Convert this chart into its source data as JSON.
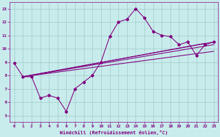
{
  "xlabel": "Windchill (Refroidissement éolien,°C)",
  "bg_color": "#c8ecec",
  "line_color": "#800080",
  "grid_color": "#a0c8c8",
  "xlim": [
    -0.5,
    23.5
  ],
  "ylim": [
    4.5,
    13.5
  ],
  "xticks": [
    0,
    1,
    2,
    3,
    4,
    5,
    6,
    7,
    8,
    9,
    10,
    11,
    12,
    13,
    14,
    15,
    16,
    17,
    18,
    19,
    20,
    21,
    22,
    23
  ],
  "yticks": [
    5,
    6,
    7,
    8,
    9,
    10,
    11,
    12,
    13
  ],
  "line1_x": [
    0,
    1,
    2,
    3,
    4,
    5,
    6,
    7,
    8,
    9,
    10,
    11,
    12,
    13,
    14,
    15,
    16,
    17,
    18,
    19,
    20,
    21,
    22,
    23
  ],
  "line1_y": [
    8.9,
    7.9,
    7.9,
    6.3,
    6.5,
    6.3,
    5.3,
    7.0,
    7.5,
    8.0,
    9.0,
    10.9,
    12.0,
    12.2,
    13.0,
    12.3,
    11.3,
    11.0,
    10.9,
    10.3,
    10.5,
    9.5,
    10.3,
    10.5
  ],
  "linear_lines": [
    {
      "x": [
        1,
        23
      ],
      "y": [
        7.9,
        10.5
      ]
    },
    {
      "x": [
        1,
        23
      ],
      "y": [
        7.9,
        10.3
      ]
    },
    {
      "x": [
        1,
        22
      ],
      "y": [
        7.9,
        10.4
      ]
    },
    {
      "x": [
        1,
        23
      ],
      "y": [
        7.9,
        9.8
      ]
    }
  ]
}
